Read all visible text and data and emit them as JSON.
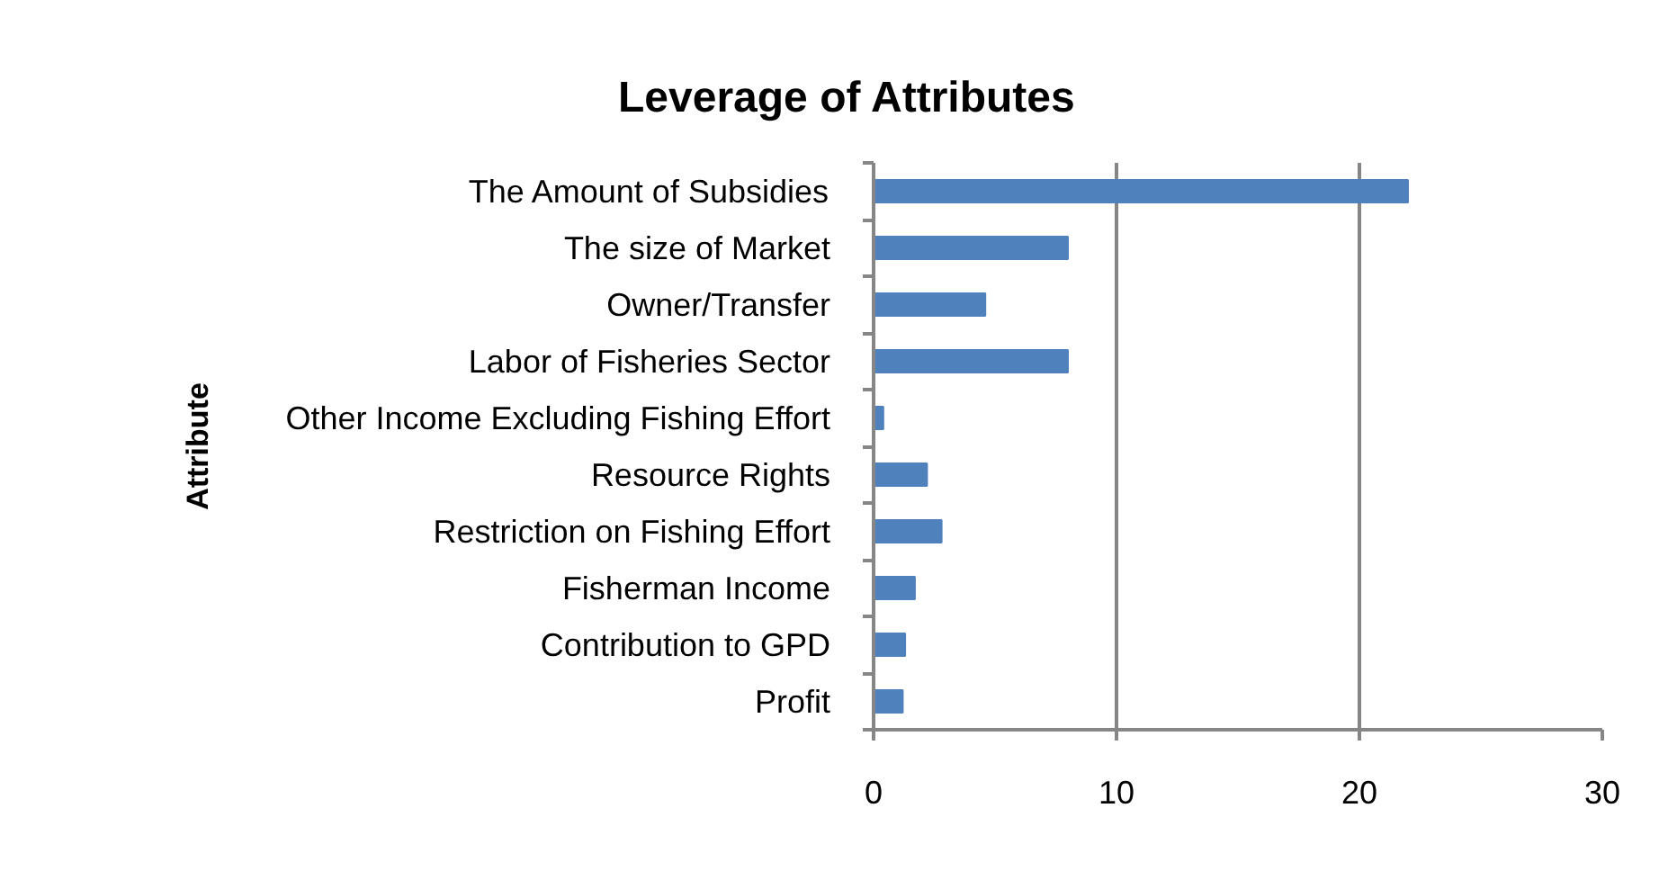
{
  "chart_data": {
    "type": "bar",
    "orientation": "horizontal",
    "title": "Leverage of Attributes",
    "ylabel": "Attribute",
    "categories": [
      "The Amount of Subsidies",
      "The size of Market",
      "Owner/Transfer",
      "Labor of Fisheries Sector",
      "Other Income Excluding Fishing Effort",
      "Resource Rights",
      "Restriction on Fishing Effort",
      "Fisherman Income",
      "Contribution to GPD",
      "Profit"
    ],
    "values": [
      22.0,
      8.0,
      4.6,
      8.0,
      0.4,
      2.2,
      2.8,
      1.7,
      1.3,
      1.2
    ],
    "color": "#4f81bd",
    "xlim": [
      0,
      30
    ],
    "xticks": [
      0,
      10,
      20,
      30
    ],
    "grid": "x"
  }
}
